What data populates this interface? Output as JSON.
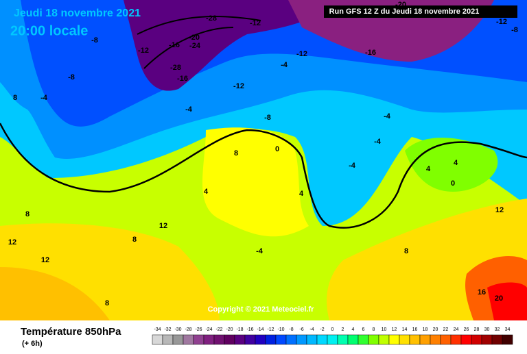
{
  "header": {
    "date": "Jeudi 18 novembre 2021",
    "time": "20:00 locale",
    "run": "Run GFS 12 Z du Jeudi 18 novembre 2021"
  },
  "copyright": "Copyright © 2021 Meteociel.fr",
  "map": {
    "labels": [
      "-28",
      "-20",
      "-24",
      "-16",
      "-12",
      "-8",
      "-12",
      "-12",
      "-16",
      "-20",
      "-12",
      "-8",
      "-28",
      "-16",
      "-12",
      "-4",
      "-4",
      "-8",
      "-4",
      "-4",
      "0",
      "4",
      "8",
      "12",
      "12",
      "8",
      "8",
      "-8",
      "-4",
      "8",
      "-4",
      "4",
      "8",
      "4",
      "16",
      "20",
      "12",
      "8",
      "12",
      "-4",
      "4",
      "0"
    ]
  },
  "legend": {
    "title": "Température 850hPa",
    "subtitle": "(+ 6h)",
    "ticks": [
      -34,
      -32,
      -30,
      -28,
      -26,
      -24,
      -22,
      -20,
      -18,
      -16,
      -14,
      -12,
      -10,
      -8,
      -6,
      -4,
      -2,
      0,
      2,
      4,
      6,
      8,
      10,
      12,
      14,
      16,
      18,
      20,
      22,
      24,
      26,
      28,
      30,
      32,
      34
    ],
    "colors": [
      "#d8d8d8",
      "#b8b8b8",
      "#989898",
      "#a078a0",
      "#904090",
      "#802080",
      "#701070",
      "#600060",
      "#5a0080",
      "#4000a0",
      "#2000c0",
      "#0020e0",
      "#0048ff",
      "#0070ff",
      "#0098ff",
      "#00b8ff",
      "#00d8ff",
      "#00f0f0",
      "#00ffb0",
      "#00ff70",
      "#30ff30",
      "#80ff00",
      "#c0ff00",
      "#ffff00",
      "#ffe000",
      "#ffc000",
      "#ffa000",
      "#ff8000",
      "#ff6000",
      "#ff3000",
      "#ff0000",
      "#d00000",
      "#a00000",
      "#700000",
      "#400000"
    ]
  }
}
